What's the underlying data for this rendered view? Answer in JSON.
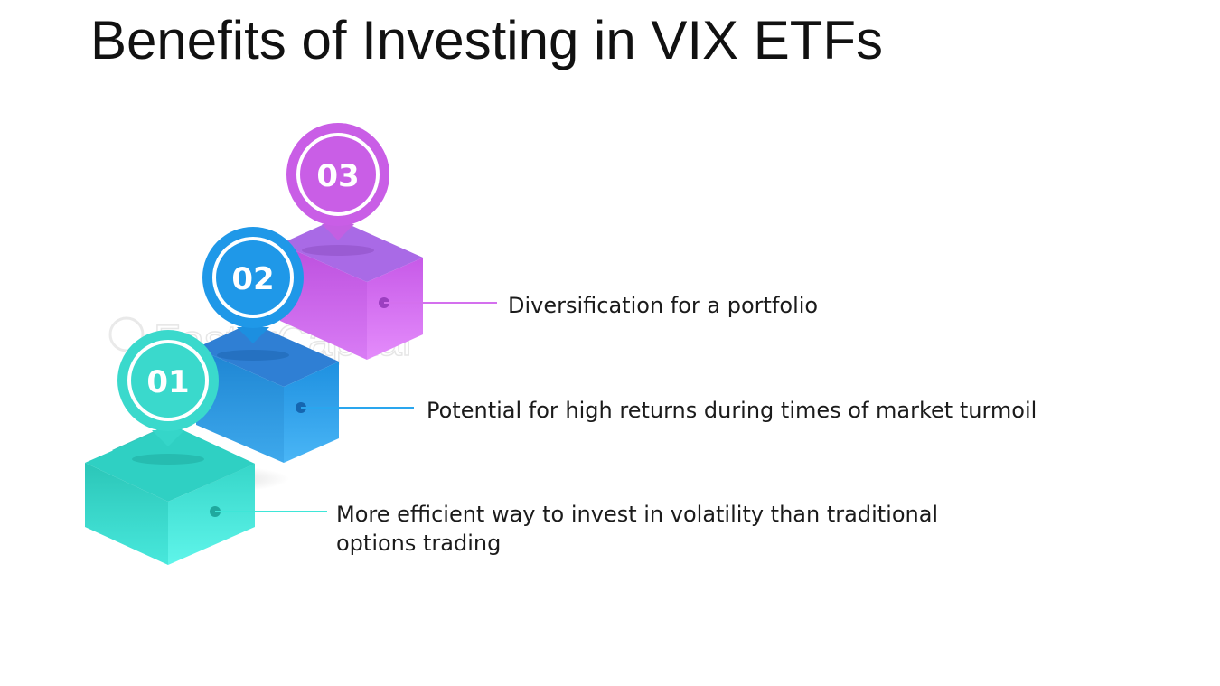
{
  "slide": {
    "title": "Benefits of Investing in VIX ETFs"
  },
  "watermark": "FasterCapital",
  "steps": [
    {
      "number": "01",
      "color": "#3fe6d8",
      "text_lines": [
        "More efficient way to invest in volatility than traditional",
        "options trading"
      ]
    },
    {
      "number": "02",
      "color": "#2aa6ee",
      "text_lines": [
        "Potential for high returns during times of market turmoil"
      ]
    },
    {
      "number": "03",
      "color": "#cf6cf0",
      "text_lines": [
        "Diversification for a portfolio"
      ]
    }
  ]
}
